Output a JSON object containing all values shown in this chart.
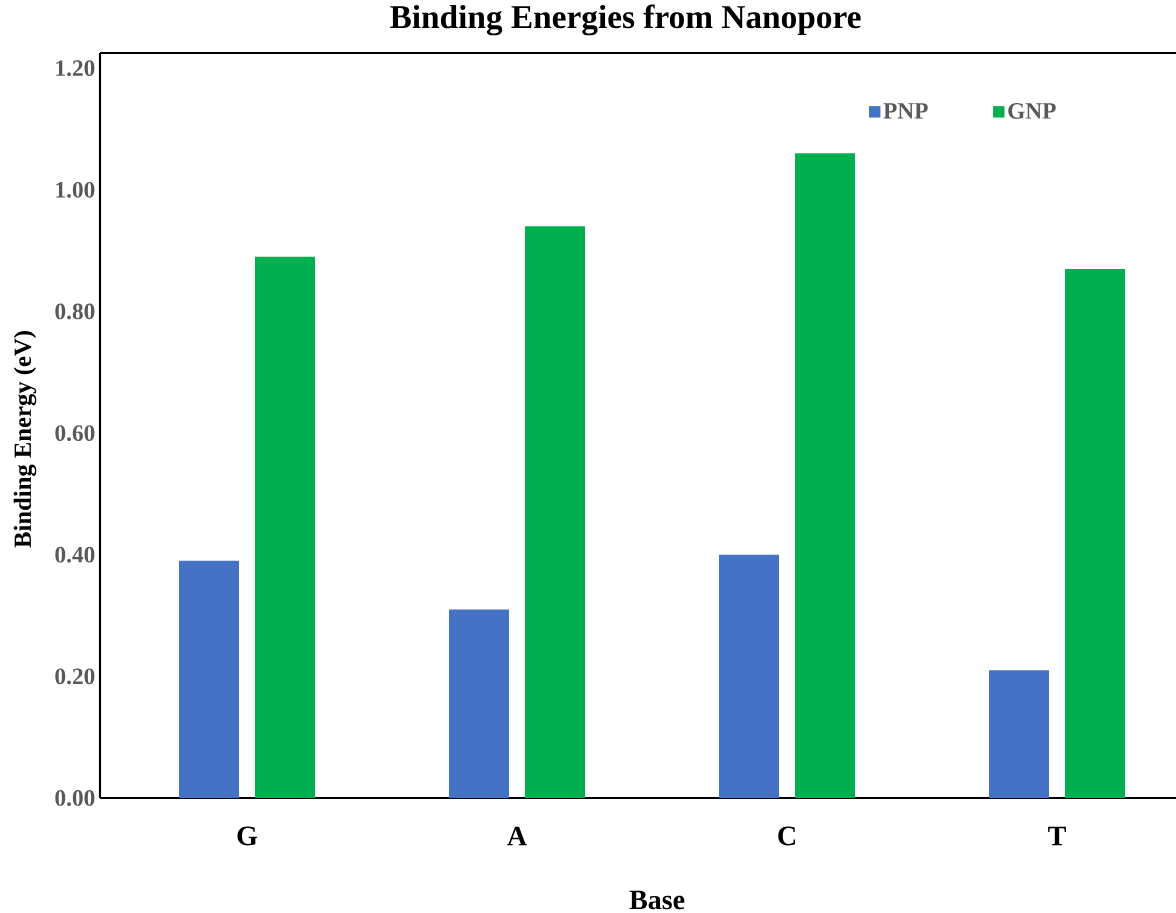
{
  "chart_data": {
    "type": "bar",
    "title": "Binding Energies from Nanopore",
    "xlabel": "Base",
    "ylabel": "Binding Energy (eV)",
    "categories": [
      "G",
      "A",
      "C",
      "T"
    ],
    "series": [
      {
        "name": "PNP",
        "color": "#4472c4",
        "values": [
          0.39,
          0.31,
          0.4,
          0.21
        ]
      },
      {
        "name": "GNP",
        "color": "#00b050",
        "values": [
          0.89,
          0.94,
          1.06,
          0.87
        ]
      }
    ],
    "ylim": [
      0,
      1.225
    ],
    "yticks": [
      {
        "value": 0,
        "label": "0.00"
      },
      {
        "value": 0.2,
        "label": "0.20"
      },
      {
        "value": 0.4,
        "label": "0.40"
      },
      {
        "value": 0.6,
        "label": "0.60"
      },
      {
        "value": 0.8,
        "label": "0.80"
      },
      {
        "value": 1.0,
        "label": "1.00"
      },
      {
        "value": 1.2,
        "label": "1.20"
      }
    ],
    "legend": "top right"
  }
}
